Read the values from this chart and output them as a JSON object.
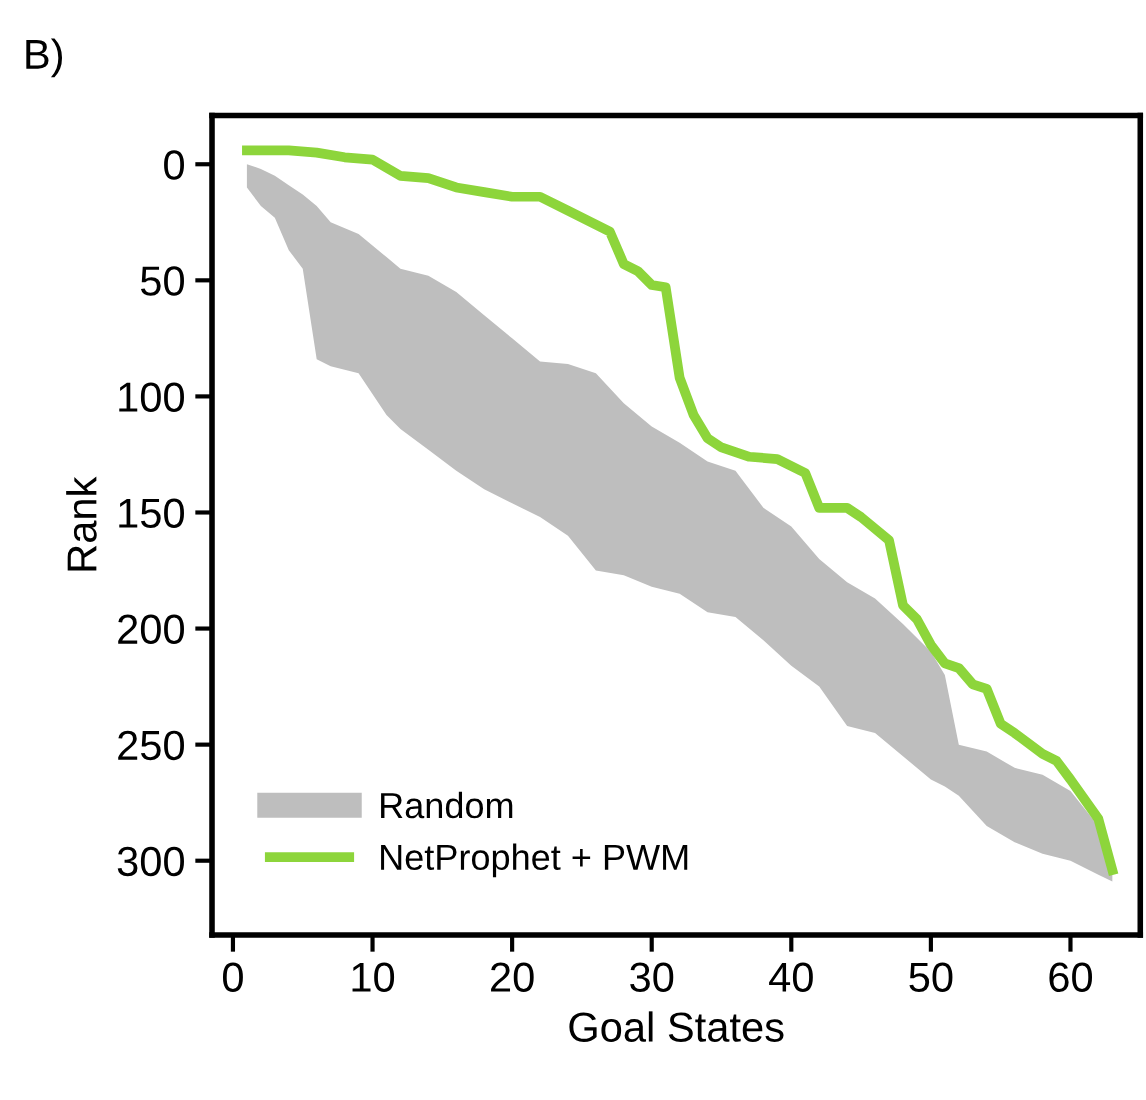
{
  "chart_data": {
    "type": "line",
    "xlabel": "Goal States",
    "ylabel": "Rank",
    "annotations": [
      "B)"
    ],
    "xlim": [
      -1.5,
      65
    ],
    "ylim": [
      332,
      -21
    ],
    "xticks": [
      0,
      10,
      20,
      30,
      40,
      50,
      60
    ],
    "yticks": [
      0,
      50,
      100,
      150,
      200,
      250,
      300
    ],
    "grid": false,
    "legend": "bottom left",
    "marker": "none",
    "line_style": "solid",
    "series": [
      {
        "name": "Random",
        "type": "line",
        "color": "#bebebe",
        "x": [
          1,
          2,
          3,
          4,
          5,
          6,
          7,
          9,
          11,
          12,
          14,
          16,
          18,
          20,
          22,
          24,
          26,
          28,
          30,
          32,
          34,
          36,
          38,
          40,
          42,
          44,
          46,
          48,
          50,
          51,
          52,
          54,
          56,
          58,
          60,
          62,
          63
        ],
        "lower": [
          0,
          2,
          5,
          9,
          13,
          18,
          25,
          30,
          40,
          45,
          48,
          55,
          65,
          75,
          85,
          86,
          90,
          103,
          113,
          120,
          128,
          132,
          148,
          156,
          170,
          180,
          187,
          198,
          210,
          220,
          250,
          253,
          260,
          263,
          270,
          285,
          305
        ],
        "upper": [
          10,
          18,
          23,
          37,
          45,
          84,
          87,
          90,
          108,
          114,
          123,
          132,
          140,
          146,
          152,
          160,
          175,
          177,
          182,
          185,
          193,
          195,
          205,
          216,
          225,
          242,
          245,
          255,
          265,
          268,
          272,
          285,
          292,
          297,
          300,
          306,
          309
        ],
        "values": [
          null,
          null,
          null,
          null,
          null,
          null,
          null,
          null,
          null,
          null,
          null,
          null,
          null,
          null,
          null,
          null,
          null,
          null,
          null,
          null,
          null,
          null,
          null,
          null,
          null,
          null,
          null,
          null,
          null,
          null,
          null,
          null,
          null,
          null,
          null,
          null,
          null
        ]
      },
      {
        "name": "NetProphet + PWM",
        "type": "line",
        "color": "#8dd53b",
        "x": [
          1,
          4,
          6,
          8,
          10,
          12,
          14,
          16,
          18,
          20,
          22,
          24,
          26,
          27,
          28,
          29,
          30,
          31,
          32,
          33,
          34,
          35,
          37,
          39,
          41,
          42,
          44,
          45,
          47,
          48,
          49,
          50,
          51,
          52,
          53,
          54,
          55,
          56,
          58,
          59,
          60,
          62,
          63
        ],
        "values": [
          -6,
          -6,
          -5,
          -3,
          -2,
          5,
          6,
          10,
          12,
          14,
          14,
          20,
          26,
          29,
          43,
          46,
          52,
          53,
          92,
          108,
          118,
          122,
          126,
          127,
          133,
          148,
          148,
          152,
          162,
          190,
          196,
          207,
          215,
          217,
          224,
          226,
          241,
          245,
          254,
          257,
          265,
          282,
          304
        ]
      }
    ]
  }
}
